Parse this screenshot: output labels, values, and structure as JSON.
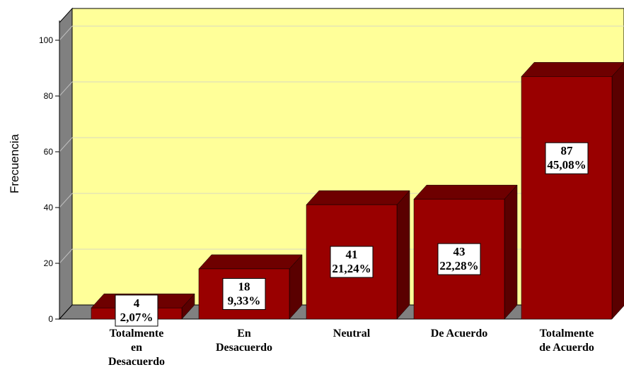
{
  "chart_data": {
    "type": "bar",
    "title": "",
    "xlabel": "",
    "ylabel": "Frecuencia",
    "ylim": [
      0,
      100
    ],
    "yticks": [
      0,
      20,
      40,
      60,
      80,
      100
    ],
    "grid": true,
    "categories": [
      [
        "Totalmente",
        "en",
        "Desacuerdo"
      ],
      [
        "En",
        "Desacuerdo"
      ],
      [
        "Neutral"
      ],
      [
        "De Acuerdo"
      ],
      [
        "Totalmente",
        "de Acuerdo"
      ]
    ],
    "values": [
      4,
      18,
      41,
      43,
      87
    ],
    "data_labels": [
      [
        "4",
        "2,07%"
      ],
      [
        "18",
        "9,33%"
      ],
      [
        "41",
        "21,24%"
      ],
      [
        "43",
        "22,28%"
      ],
      [
        "87",
        "45,08%"
      ]
    ],
    "colors": {
      "plot_background": "#FFFF99",
      "bar_front": "#990000",
      "bar_top": "#6E0000",
      "bar_side": "#5A0000",
      "side_wall": "#808080",
      "floor": "#808080"
    }
  }
}
